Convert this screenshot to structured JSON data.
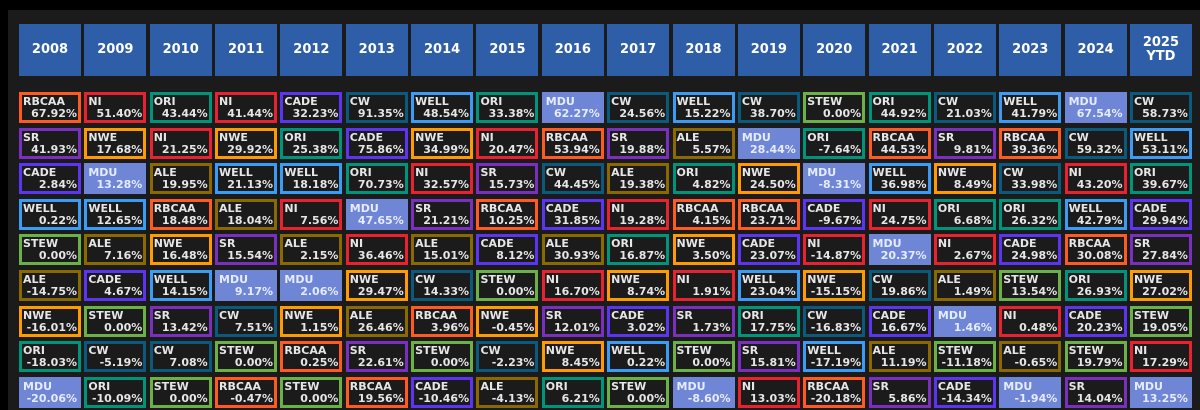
{
  "colors": {
    "RBCAA": "#ff5a1f",
    "NI": "#e8232f",
    "ORI": "#00957a",
    "CADE": "#5b35f2",
    "CW": "#0b5a7e",
    "WELL": "#3a9cf5",
    "MDU": "#6f86d6",
    "STEW": "#6cb048",
    "SR": "#7b2fbf",
    "NWE": "#ff9b00",
    "ALE": "#8a6a00",
    "header": "#2e5ea8"
  },
  "years": [
    {
      "label": "2008",
      "items": [
        [
          "RBCAA",
          "67.92%"
        ],
        [
          "SR",
          "41.93%"
        ],
        [
          "CADE",
          "2.84%"
        ],
        [
          "WELL",
          "0.22%"
        ],
        [
          "STEW",
          "0.00%"
        ],
        [
          "ALE",
          "-14.75%"
        ],
        [
          "NWE",
          "-16.01%"
        ],
        [
          "ORI",
          "-18.03%"
        ],
        [
          "MDU",
          "-20.06%"
        ]
      ]
    },
    {
      "label": "2009",
      "items": [
        [
          "NI",
          "51.40%"
        ],
        [
          "NWE",
          "17.68%"
        ],
        [
          "MDU",
          "13.28%"
        ],
        [
          "WELL",
          "12.65%"
        ],
        [
          "ALE",
          "7.16%"
        ],
        [
          "CADE",
          "4.67%"
        ],
        [
          "STEW",
          "0.00%"
        ],
        [
          "CW",
          "-5.19%"
        ],
        [
          "ORI",
          "-10.09%"
        ]
      ]
    },
    {
      "label": "2010",
      "items": [
        [
          "ORI",
          "43.44%"
        ],
        [
          "NI",
          "21.25%"
        ],
        [
          "ALE",
          "19.95%"
        ],
        [
          "RBCAA",
          "18.48%"
        ],
        [
          "NWE",
          "16.48%"
        ],
        [
          "WELL",
          "14.15%"
        ],
        [
          "SR",
          "13.42%"
        ],
        [
          "CW",
          "7.08%"
        ],
        [
          "STEW",
          "0.00%"
        ]
      ]
    },
    {
      "label": "2011",
      "items": [
        [
          "NI",
          "41.44%"
        ],
        [
          "NWE",
          "29.92%"
        ],
        [
          "WELL",
          "21.13%"
        ],
        [
          "ALE",
          "18.04%"
        ],
        [
          "SR",
          "15.54%"
        ],
        [
          "MDU",
          "9.17%"
        ],
        [
          "CW",
          "7.51%"
        ],
        [
          "STEW",
          "0.00%"
        ],
        [
          "RBCAA",
          "-0.47%"
        ]
      ]
    },
    {
      "label": "2012",
      "items": [
        [
          "CADE",
          "32.23%"
        ],
        [
          "ORI",
          "25.38%"
        ],
        [
          "WELL",
          "18.18%"
        ],
        [
          "NI",
          "7.56%"
        ],
        [
          "ALE",
          "2.15%"
        ],
        [
          "MDU",
          "2.06%"
        ],
        [
          "NWE",
          "1.15%"
        ],
        [
          "RBCAA",
          "0.25%"
        ],
        [
          "STEW",
          "0.00%"
        ]
      ]
    },
    {
      "label": "2013",
      "items": [
        [
          "CW",
          "91.35%"
        ],
        [
          "CADE",
          "75.86%"
        ],
        [
          "ORI",
          "70.73%"
        ],
        [
          "MDU",
          "47.65%"
        ],
        [
          "NI",
          "36.46%"
        ],
        [
          "NWE",
          "29.47%"
        ],
        [
          "ALE",
          "26.46%"
        ],
        [
          "SR",
          "22.61%"
        ],
        [
          "RBCAA",
          "19.56%"
        ]
      ]
    },
    {
      "label": "2014",
      "items": [
        [
          "WELL",
          "48.54%"
        ],
        [
          "NWE",
          "34.99%"
        ],
        [
          "NI",
          "32.57%"
        ],
        [
          "SR",
          "21.21%"
        ],
        [
          "ALE",
          "15.01%"
        ],
        [
          "CW",
          "14.33%"
        ],
        [
          "RBCAA",
          "3.96%"
        ],
        [
          "STEW",
          "0.00%"
        ],
        [
          "CADE",
          "-10.46%"
        ]
      ]
    },
    {
      "label": "2015",
      "items": [
        [
          "ORI",
          "33.38%"
        ],
        [
          "NI",
          "20.47%"
        ],
        [
          "SR",
          "15.73%"
        ],
        [
          "RBCAA",
          "10.25%"
        ],
        [
          "CADE",
          "8.12%"
        ],
        [
          "STEW",
          "0.00%"
        ],
        [
          "NWE",
          "-0.45%"
        ],
        [
          "CW",
          "-2.23%"
        ],
        [
          "ALE",
          "-4.13%"
        ]
      ]
    },
    {
      "label": "2016",
      "items": [
        [
          "MDU",
          "62.27%"
        ],
        [
          "RBCAA",
          "53.94%"
        ],
        [
          "CW",
          "44.45%"
        ],
        [
          "CADE",
          "31.85%"
        ],
        [
          "ALE",
          "30.93%"
        ],
        [
          "NI",
          "16.70%"
        ],
        [
          "SR",
          "12.01%"
        ],
        [
          "NWE",
          "8.45%"
        ],
        [
          "ORI",
          "6.21%"
        ]
      ]
    },
    {
      "label": "2017",
      "items": [
        [
          "CW",
          "24.56%"
        ],
        [
          "SR",
          "19.88%"
        ],
        [
          "ALE",
          "19.38%"
        ],
        [
          "NI",
          "19.28%"
        ],
        [
          "ORI",
          "16.87%"
        ],
        [
          "NWE",
          "8.74%"
        ],
        [
          "CADE",
          "3.02%"
        ],
        [
          "WELL",
          "0.22%"
        ],
        [
          "STEW",
          "0.00%"
        ]
      ]
    },
    {
      "label": "2018",
      "items": [
        [
          "WELL",
          "15.22%"
        ],
        [
          "ALE",
          "5.57%"
        ],
        [
          "ORI",
          "4.82%"
        ],
        [
          "RBCAA",
          "4.15%"
        ],
        [
          "NWE",
          "3.50%"
        ],
        [
          "NI",
          "1.91%"
        ],
        [
          "SR",
          "1.73%"
        ],
        [
          "STEW",
          "0.00%"
        ],
        [
          "MDU",
          "-8.60%"
        ]
      ]
    },
    {
      "label": "2019",
      "items": [
        [
          "CW",
          "38.70%"
        ],
        [
          "MDU",
          "28.44%"
        ],
        [
          "NWE",
          "24.50%"
        ],
        [
          "RBCAA",
          "23.71%"
        ],
        [
          "CADE",
          "23.07%"
        ],
        [
          "WELL",
          "23.04%"
        ],
        [
          "ORI",
          "17.75%"
        ],
        [
          "SR",
          "15.81%"
        ],
        [
          "NI",
          "13.03%"
        ]
      ]
    },
    {
      "label": "2020",
      "items": [
        [
          "STEW",
          "0.00%"
        ],
        [
          "ORI",
          "-7.64%"
        ],
        [
          "MDU",
          "-8.31%"
        ],
        [
          "CADE",
          "-9.67%"
        ],
        [
          "NI",
          "-14.87%"
        ],
        [
          "NWE",
          "-15.15%"
        ],
        [
          "CW",
          "-16.83%"
        ],
        [
          "WELL",
          "-17.19%"
        ],
        [
          "RBCAA",
          "-20.18%"
        ]
      ]
    },
    {
      "label": "2021",
      "items": [
        [
          "ORI",
          "44.92%"
        ],
        [
          "RBCAA",
          "44.53%"
        ],
        [
          "WELL",
          "36.98%"
        ],
        [
          "NI",
          "24.75%"
        ],
        [
          "MDU",
          "20.37%"
        ],
        [
          "CW",
          "19.86%"
        ],
        [
          "CADE",
          "16.67%"
        ],
        [
          "ALE",
          "11.19%"
        ],
        [
          "SR",
          "5.86%"
        ]
      ]
    },
    {
      "label": "2022",
      "items": [
        [
          "CW",
          "21.03%"
        ],
        [
          "SR",
          "9.81%"
        ],
        [
          "NWE",
          "8.49%"
        ],
        [
          "ORI",
          "6.68%"
        ],
        [
          "NI",
          "2.67%"
        ],
        [
          "ALE",
          "1.49%"
        ],
        [
          "MDU",
          "1.46%"
        ],
        [
          "STEW",
          "-11.18%"
        ],
        [
          "CADE",
          "-14.34%"
        ]
      ]
    },
    {
      "label": "2023",
      "items": [
        [
          "WELL",
          "41.79%"
        ],
        [
          "RBCAA",
          "39.36%"
        ],
        [
          "CW",
          "33.98%"
        ],
        [
          "ORI",
          "26.32%"
        ],
        [
          "CADE",
          "24.98%"
        ],
        [
          "STEW",
          "13.54%"
        ],
        [
          "NI",
          "0.48%"
        ],
        [
          "ALE",
          "-0.65%"
        ],
        [
          "MDU",
          "-1.94%"
        ]
      ]
    },
    {
      "label": "2024",
      "items": [
        [
          "MDU",
          "67.54%"
        ],
        [
          "CW",
          "59.32%"
        ],
        [
          "NI",
          "43.20%"
        ],
        [
          "WELL",
          "42.79%"
        ],
        [
          "RBCAA",
          "30.08%"
        ],
        [
          "ORI",
          "26.93%"
        ],
        [
          "CADE",
          "20.23%"
        ],
        [
          "STEW",
          "19.79%"
        ],
        [
          "SR",
          "14.04%"
        ]
      ]
    },
    {
      "label": "2025\nYTD",
      "items": [
        [
          "CW",
          "58.73%"
        ],
        [
          "WELL",
          "53.11%"
        ],
        [
          "ORI",
          "39.67%"
        ],
        [
          "CADE",
          "29.94%"
        ],
        [
          "SR",
          "27.84%"
        ],
        [
          "NWE",
          "27.02%"
        ],
        [
          "STEW",
          "19.05%"
        ],
        [
          "NI",
          "17.29%"
        ],
        [
          "MDU",
          "13.25%"
        ]
      ]
    }
  ]
}
